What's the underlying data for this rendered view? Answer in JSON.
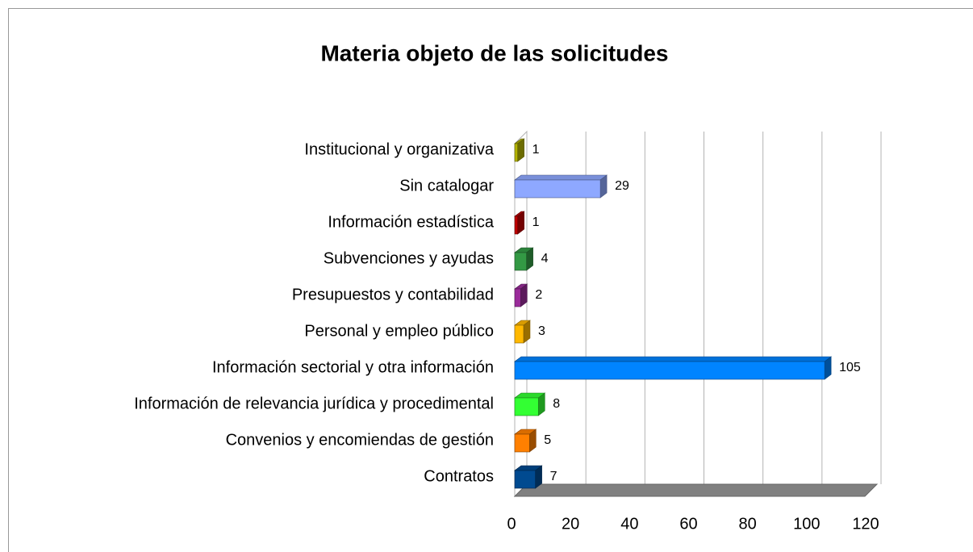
{
  "chart_data": {
    "type": "bar",
    "orientation": "horizontal",
    "title": "Materia objeto de las solicitudes",
    "categories": [
      "Institucional y organizativa",
      "Sin catalogar",
      "Información estadística",
      "Subvenciones y ayudas",
      "Presupuestos y contabilidad",
      "Personal y empleo público",
      "Información sectorial y otra información",
      "Información de relevancia jurídica y procedimental",
      "Convenios y encomiendas de gestión",
      "Contratos"
    ],
    "values": [
      1,
      29,
      1,
      4,
      2,
      3,
      105,
      8,
      5,
      7
    ],
    "colors": [
      "#b4b400",
      "#8ea8ff",
      "#c00000",
      "#339944",
      "#9a2b9a",
      "#ffb800",
      "#0084ff",
      "#33ff33",
      "#ff8000",
      "#004a90"
    ],
    "xlim": [
      0,
      120
    ],
    "xticks": [
      0,
      20,
      40,
      60,
      80,
      100,
      120
    ],
    "grid": true
  }
}
